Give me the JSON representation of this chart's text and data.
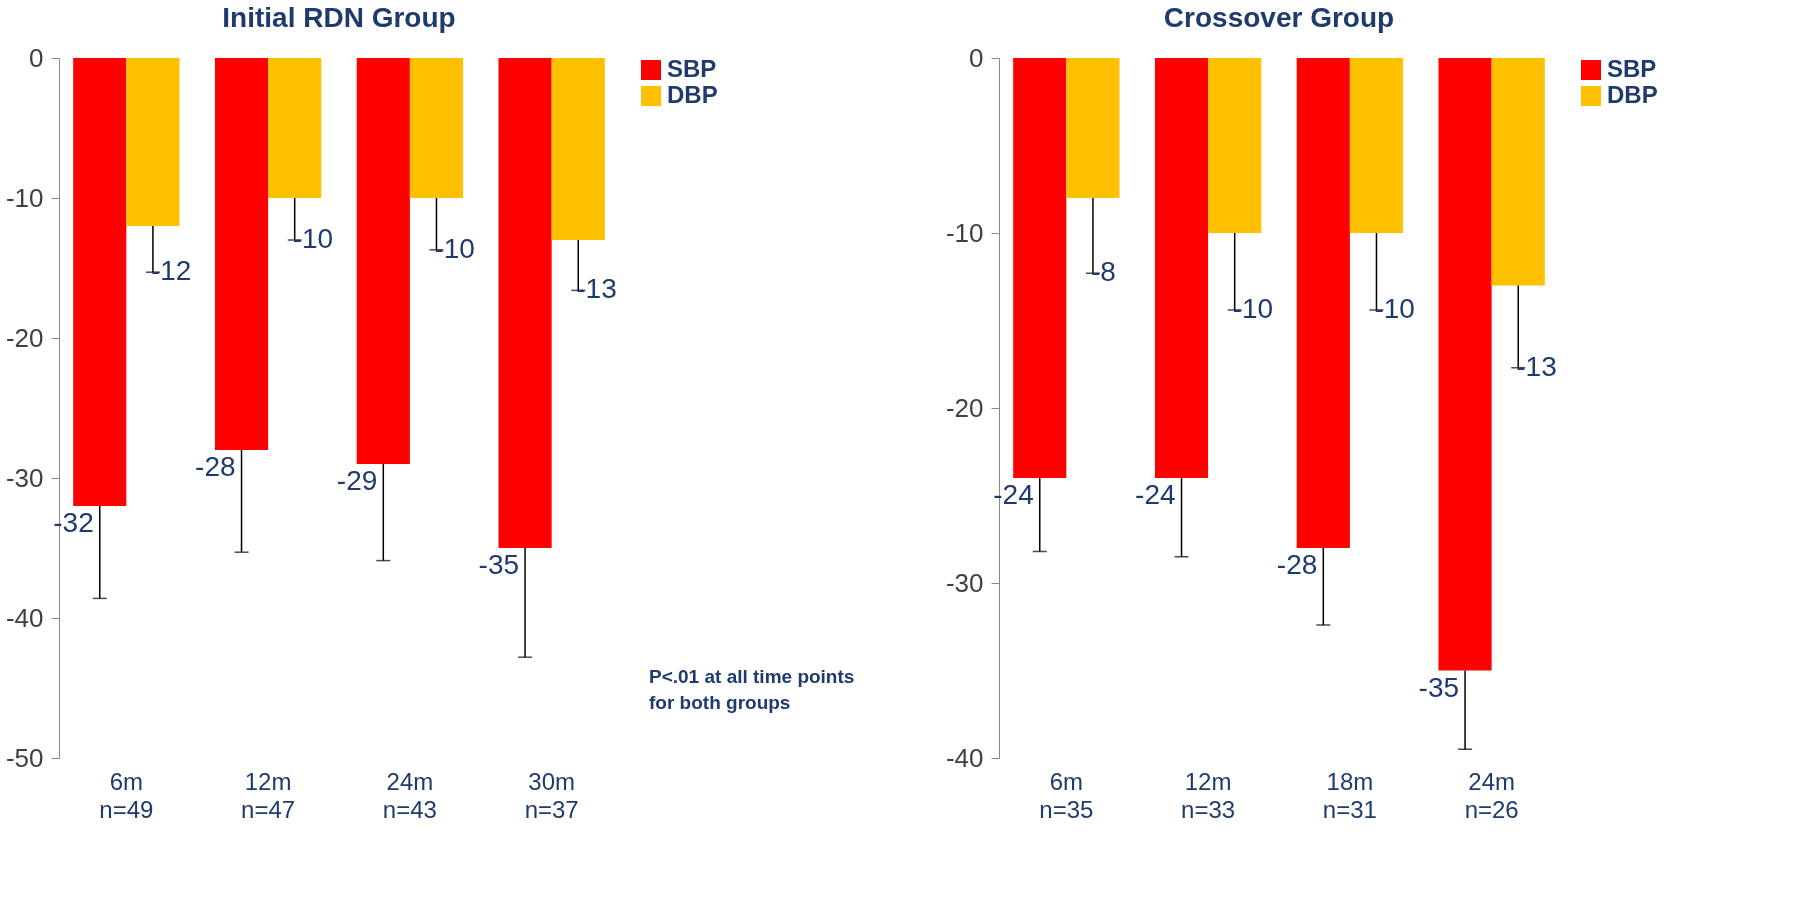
{
  "chart_data": [
    {
      "type": "bar",
      "title": "Initial RDN Group",
      "categories": [
        "6m\nn=49",
        "12m\nn=47",
        "24m\nn=43",
        "30m\nn=37"
      ],
      "ylim": [
        -50,
        0
      ],
      "yticks": [
        -50,
        -40,
        -30,
        -20,
        -10,
        0
      ],
      "grid": false,
      "legend": "right",
      "data_labels": true,
      "series": [
        {
          "name": "SBP",
          "color": "#ff0000",
          "values": [
            -32,
            -28,
            -29,
            -35
          ],
          "errors": [
            [
              -38.6,
              -32
            ],
            [
              -35.3,
              -28
            ],
            [
              -35.9,
              -29
            ],
            [
              -42.8,
              -35
            ]
          ]
        },
        {
          "name": "DBP",
          "color": "#ffc000",
          "values": [
            -12,
            -10,
            -10,
            -13
          ],
          "errors": [
            [
              -15.3,
              -12
            ],
            [
              -13.0,
              -10
            ],
            [
              -13.7,
              -10
            ],
            [
              -16.6,
              -13
            ]
          ]
        }
      ],
      "annotations": [
        "P<.01 at all time points\nfor both groups"
      ]
    },
    {
      "type": "bar",
      "title": "Crossover Group",
      "categories": [
        "6m\nn=35",
        "12m\nn=33",
        "18m\nn=31",
        "24m\nn=26"
      ],
      "ylim": [
        -40,
        0
      ],
      "yticks": [
        -40,
        -30,
        -20,
        -10,
        0
      ],
      "grid": false,
      "legend": "right",
      "data_labels": true,
      "series": [
        {
          "name": "SBP",
          "color": "#ff0000",
          "values": [
            -24,
            -24,
            -28,
            -35
          ],
          "errors": [
            [
              -28.2,
              -24
            ],
            [
              -28.5,
              -24
            ],
            [
              -32.4,
              -28
            ],
            [
              -39.5,
              -35
            ]
          ]
        },
        {
          "name": "DBP",
          "color": "#ffc000",
          "values": [
            -8,
            -10,
            -10,
            -13
          ],
          "errors": [
            [
              -12.3,
              -8
            ],
            [
              -14.4,
              -10
            ],
            [
              -14.4,
              -10
            ],
            [
              -17.7,
              -13
            ]
          ]
        }
      ]
    }
  ]
}
